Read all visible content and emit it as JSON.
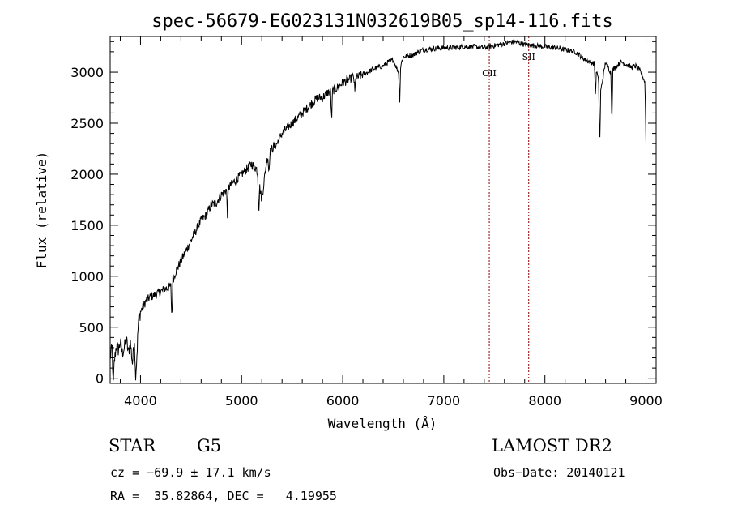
{
  "chart_data": {
    "type": "line",
    "title": "spec-56679-EG023131N032619B05_sp14-116.fits",
    "xlabel": "Wavelength (Å)",
    "ylabel": "Flux (relative)",
    "xlim": [
      3700,
      9100
    ],
    "ylim": [
      -50,
      3350
    ],
    "xticks": [
      4000,
      5000,
      6000,
      7000,
      8000,
      9000
    ],
    "yticks": [
      0,
      500,
      1000,
      1500,
      2000,
      2500,
      3000
    ],
    "grid": false,
    "line_color": "#000000",
    "marker_color": "#8b0000",
    "series": [
      {
        "x": [
          3700,
          3720,
          3740,
          3760,
          3780,
          3800,
          3820,
          3840,
          3860,
          3880,
          3900,
          3920,
          3940,
          3960,
          3980,
          4000,
          4050,
          4100,
          4150,
          4200,
          4250,
          4300,
          4350,
          4400,
          4450,
          4500,
          4550,
          4600,
          4650,
          4700,
          4750,
          4800,
          4850,
          4900,
          4950,
          5000,
          5050,
          5100,
          5150,
          5200,
          5250,
          5300,
          5350,
          5400,
          5450,
          5500,
          5550,
          5600,
          5650,
          5700,
          5750,
          5800,
          5850,
          5900,
          5950,
          6000,
          6050,
          6100,
          6150,
          6200,
          6250,
          6300,
          6350,
          6400,
          6450,
          6500,
          6550,
          6600,
          6650,
          6700,
          6750,
          6800,
          6900,
          7000,
          7100,
          7200,
          7300,
          7400,
          7500,
          7600,
          7700,
          7800,
          7900,
          8000,
          8100,
          8200,
          8300,
          8400,
          8450,
          8500,
          8550,
          8600,
          8650,
          8700,
          8750,
          8800,
          8850,
          8900,
          8950,
          8990,
          9000
        ],
        "y": [
          200,
          300,
          150,
          320,
          280,
          350,
          250,
          300,
          380,
          250,
          350,
          150,
          380,
          150,
          550,
          650,
          750,
          800,
          820,
          850,
          880,
          900,
          1050,
          1150,
          1250,
          1350,
          1450,
          1550,
          1600,
          1700,
          1720,
          1800,
          1850,
          1900,
          1950,
          2000,
          2050,
          2100,
          2050,
          1750,
          2150,
          2250,
          2300,
          2400,
          2450,
          2500,
          2550,
          2600,
          2650,
          2700,
          2750,
          2750,
          2800,
          2820,
          2850,
          2900,
          2920,
          2950,
          2950,
          2980,
          3000,
          3030,
          3050,
          3060,
          3100,
          3120,
          3000,
          3150,
          3160,
          3170,
          3200,
          3220,
          3230,
          3240,
          3240,
          3250,
          3250,
          3240,
          3260,
          3280,
          3300,
          3270,
          3260,
          3250,
          3240,
          3220,
          3200,
          3120,
          3100,
          3080,
          2800,
          3100,
          3000,
          3050,
          3100,
          3080,
          3050,
          3060,
          3000,
          2900,
          2300
        ]
      }
    ],
    "dips": [
      {
        "x": 3730,
        "depth": 350
      },
      {
        "x": 3950,
        "depth": 250
      },
      {
        "x": 4310,
        "depth": 350
      },
      {
        "x": 4860,
        "depth": 250
      },
      {
        "x": 5170,
        "depth": 300
      },
      {
        "x": 5270,
        "depth": 180
      },
      {
        "x": 5890,
        "depth": 300
      },
      {
        "x": 6120,
        "depth": 150
      },
      {
        "x": 6563,
        "depth": 350
      },
      {
        "x": 8500,
        "depth": 300
      },
      {
        "x": 8542,
        "depth": 600
      },
      {
        "x": 8662,
        "depth": 500
      }
    ],
    "line_markers": [
      {
        "label": "OII",
        "x": 7450
      },
      {
        "label": "SII",
        "x": 7840
      }
    ]
  },
  "info": {
    "object_class": "STAR",
    "subclass": "G5",
    "survey": "LAMOST DR2",
    "redshift_line": "cz = −69.9 ± 17.1 km/s",
    "obs_date": "Obs−Date: 20140121",
    "coords_line": "RA =  35.82864, DEC =   4.19955"
  }
}
